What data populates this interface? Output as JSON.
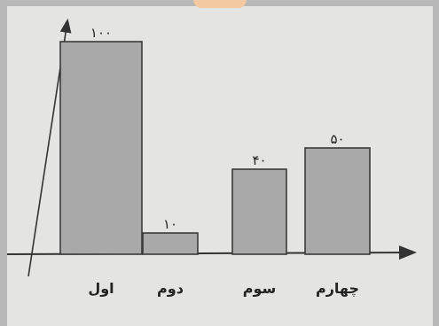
{
  "chart_data": {
    "type": "bar",
    "title": "",
    "xlabel": "",
    "ylabel": "",
    "categories": [
      "اول",
      "دوم",
      "سوم",
      "چهارم"
    ],
    "values": [
      100,
      10,
      40,
      50
    ],
    "value_labels": [
      "۱۰۰",
      "۱۰",
      "۴۰",
      "۵۰"
    ],
    "ylim": [
      0,
      100
    ],
    "grid": false,
    "legend": "none",
    "colors": {
      "bar_fill": "#a9a9a9",
      "bar_stroke": "#3a3a3a",
      "axis": "#333333",
      "text": "#222222",
      "paper": "#e4e4e2"
    }
  }
}
